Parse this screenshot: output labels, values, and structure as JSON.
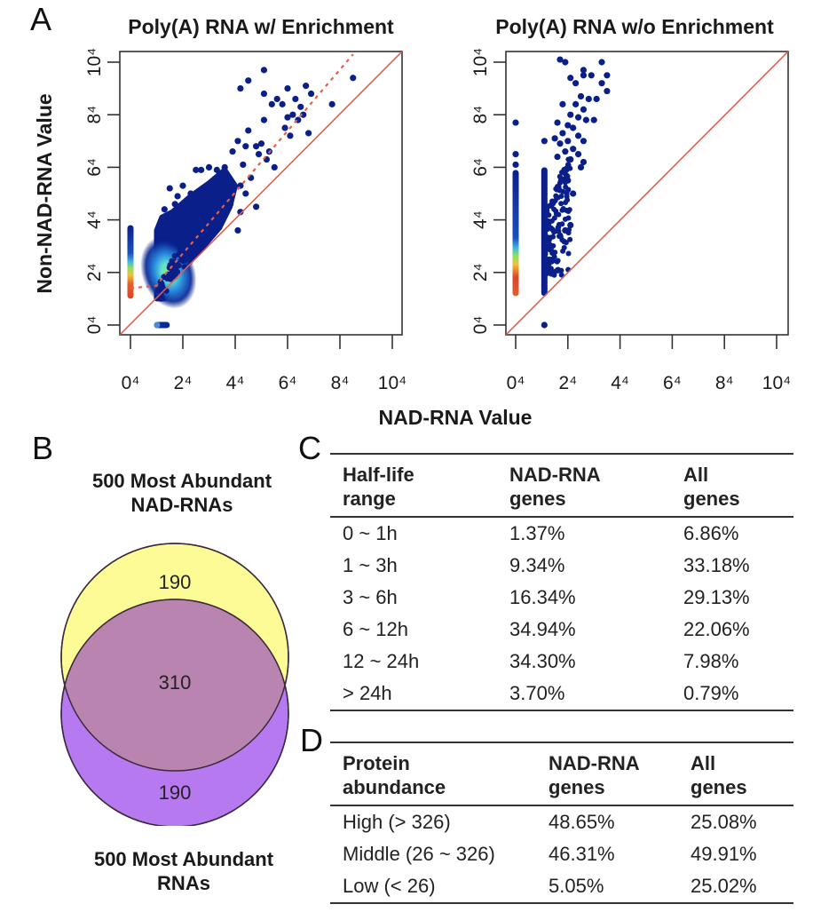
{
  "panels": {
    "A": "A",
    "B": "B",
    "C": "C",
    "D": "D"
  },
  "chart_data": [
    {
      "type": "scatter",
      "title": "Poly(A) RNA w/ Enrichment",
      "xlabel": "NAD-RNA Value",
      "ylabel": "Non-NAD-RNA Value",
      "xlim": [
        0,
        10
      ],
      "ylim": [
        0,
        10
      ],
      "x_tick_labels": [
        "0⁴",
        "2⁴",
        "4⁴",
        "6⁴",
        "8⁴",
        "10⁴"
      ],
      "y_tick_labels": [
        "0⁴",
        "2⁴",
        "4⁴",
        "6⁴",
        "8⁴",
        "10⁴"
      ],
      "ticks": [
        0,
        2,
        4,
        6,
        8,
        10
      ],
      "color_scale": "density (blue → cyan → green → yellow → red)",
      "reference_line": {
        "type": "identity",
        "color": "#e0604e"
      },
      "trend_line": {
        "type": "dashed",
        "color": "#e0604e",
        "points": [
          [
            0,
            1.4
          ],
          [
            1,
            1.5
          ],
          [
            1.3,
            1.9
          ],
          [
            8.5,
            10.3
          ]
        ]
      },
      "clusters": [
        {
          "name": "zero-x column",
          "x": 0,
          "y_range": [
            1.0,
            3.8
          ],
          "dense_range": [
            1.0,
            2.2
          ]
        },
        {
          "name": "main cloud",
          "x_range": [
            1.0,
            4.0
          ],
          "y_range": [
            1.0,
            5.3
          ],
          "dense_center": [
            1.3,
            1.8
          ]
        },
        {
          "name": "zero-y row",
          "x_range": [
            1.0,
            1.4
          ],
          "y": 0
        }
      ],
      "points": [
        [
          5.1,
          9.7
        ],
        [
          4.5,
          9.3
        ],
        [
          4.2,
          9.0
        ],
        [
          8.5,
          9.4
        ],
        [
          6.7,
          9.1
        ],
        [
          6.0,
          9.0
        ],
        [
          5.1,
          8.8
        ],
        [
          6.9,
          8.8
        ],
        [
          7.7,
          8.4
        ],
        [
          5.6,
          8.6
        ],
        [
          5.8,
          8.4
        ],
        [
          6.3,
          8.6
        ],
        [
          5.4,
          8.4
        ],
        [
          6.5,
          8.3
        ],
        [
          6.2,
          8.0
        ],
        [
          6.6,
          8.0
        ],
        [
          6.0,
          7.9
        ],
        [
          5.1,
          7.8
        ],
        [
          6.4,
          7.8
        ],
        [
          5.9,
          7.5
        ],
        [
          6.1,
          7.2
        ],
        [
          6.8,
          7.3
        ],
        [
          4.5,
          7.4
        ],
        [
          4.1,
          7.0
        ],
        [
          5.0,
          6.9
        ],
        [
          4.4,
          6.8
        ],
        [
          4.9,
          6.5
        ],
        [
          5.3,
          6.6
        ],
        [
          5.2,
          6.3
        ],
        [
          4.8,
          6.8
        ],
        [
          3.9,
          6.6
        ],
        [
          5.5,
          6.0
        ],
        [
          4.3,
          6.1
        ],
        [
          4.6,
          5.6
        ],
        [
          4.2,
          5.3
        ],
        [
          4.4,
          5.0
        ],
        [
          4.8,
          4.5
        ],
        [
          4.2,
          4.3
        ],
        [
          4.1,
          3.6
        ],
        [
          3.6,
          6.0
        ],
        [
          3.3,
          5.9
        ],
        [
          2.7,
          5.9
        ],
        [
          2.5,
          5.9
        ],
        [
          3.0,
          6.0
        ],
        [
          1.5,
          5.2
        ],
        [
          2.0,
          5.3
        ],
        [
          1.8,
          4.9
        ],
        [
          1.3,
          4.4
        ],
        [
          1.7,
          4.6
        ],
        [
          2.3,
          5.0
        ]
      ]
    },
    {
      "type": "scatter",
      "title": "Poly(A) RNA w/o Enrichment",
      "xlabel": "NAD-RNA Value",
      "ylabel": "",
      "xlim": [
        0,
        10
      ],
      "ylim": [
        0,
        10
      ],
      "x_tick_labels": [
        "0⁴",
        "2⁴",
        "4⁴",
        "6⁴",
        "8⁴",
        "10⁴"
      ],
      "y_tick_labels": [
        "0⁴",
        "2⁴",
        "4⁴",
        "6⁴",
        "8⁴",
        "10⁴"
      ],
      "ticks": [
        0,
        2,
        4,
        6,
        8,
        10
      ],
      "color_scale": "density (blue → cyan → green → yellow → red)",
      "reference_line": {
        "type": "identity",
        "color": "#e0604e"
      },
      "clusters": [
        {
          "name": "zero-x column",
          "x": 0,
          "y_range": [
            1.1,
            5.9
          ],
          "dense_range": [
            1.1,
            2.8
          ]
        },
        {
          "name": "x=1 column",
          "x": 1.1,
          "y_range": [
            1.1,
            6.0
          ]
        },
        {
          "name": "spread",
          "x_range": [
            1.1,
            2.1
          ],
          "y_range": [
            1.9,
            6.5
          ]
        }
      ],
      "points": [
        [
          0,
          7.7
        ],
        [
          0,
          6.5
        ],
        [
          0,
          6.1
        ],
        [
          1.7,
          10.1
        ],
        [
          1.9,
          10.0
        ],
        [
          3.3,
          10.0
        ],
        [
          2.6,
          9.7
        ],
        [
          2.6,
          9.5
        ],
        [
          2.9,
          9.5
        ],
        [
          2.1,
          9.4
        ],
        [
          3.5,
          9.5
        ],
        [
          2.3,
          9.2
        ],
        [
          3.3,
          9.2
        ],
        [
          3.5,
          8.9
        ],
        [
          2.5,
          8.7
        ],
        [
          2.8,
          8.6
        ],
        [
          3.1,
          8.6
        ],
        [
          1.8,
          8.4
        ],
        [
          2.3,
          8.4
        ],
        [
          2.6,
          8.2
        ],
        [
          2.1,
          8.0
        ],
        [
          2.4,
          7.9
        ],
        [
          2.7,
          7.8
        ],
        [
          3.0,
          7.8
        ],
        [
          1.6,
          7.7
        ],
        [
          2.0,
          7.6
        ],
        [
          2.2,
          7.5
        ],
        [
          1.8,
          7.3
        ],
        [
          2.4,
          7.2
        ],
        [
          1.5,
          7.1
        ],
        [
          2.0,
          7.0
        ],
        [
          2.6,
          7.0
        ],
        [
          1.1,
          7.0
        ],
        [
          1.7,
          6.9
        ],
        [
          2.2,
          6.7
        ],
        [
          1.9,
          6.6
        ],
        [
          2.4,
          6.5
        ],
        [
          2.6,
          6.2
        ],
        [
          2.1,
          6.3
        ],
        [
          1.6,
          6.4
        ],
        [
          2.5,
          6.0
        ],
        [
          2.0,
          5.5
        ],
        [
          2.2,
          5.0
        ],
        [
          2.1,
          3.8
        ],
        [
          1.9,
          3.6
        ],
        [
          1.1,
          0
        ]
      ]
    }
  ],
  "venn": {
    "top_label_line1": "500 Most Abundant",
    "top_label_line2": "NAD-RNAs",
    "bottom_label_line1": "500 Most Abundant",
    "bottom_label_line2": "RNAs",
    "top_only": "190",
    "overlap": "310",
    "bottom_only": "190",
    "colors": {
      "top": "#fdfb96",
      "bottom": "#b679f0",
      "overlap": "#b985b0"
    }
  },
  "table_c": {
    "headers": [
      [
        "Half-life",
        "range"
      ],
      [
        "NAD-RNA",
        "genes"
      ],
      [
        "All",
        "genes"
      ]
    ],
    "rows": [
      [
        "0 ~ 1h",
        "1.37%",
        "6.86%"
      ],
      [
        "1 ~ 3h",
        "9.34%",
        "33.18%"
      ],
      [
        "3 ~ 6h",
        "16.34%",
        "29.13%"
      ],
      [
        "6 ~ 12h",
        "34.94%",
        "22.06%"
      ],
      [
        "12 ~ 24h",
        "34.30%",
        "7.98%"
      ],
      [
        "> 24h",
        "3.70%",
        "0.79%"
      ]
    ]
  },
  "table_d": {
    "headers": [
      [
        "Protein",
        "abundance"
      ],
      [
        "NAD-RNA",
        "genes"
      ],
      [
        "All",
        "genes"
      ]
    ],
    "rows": [
      [
        "High (> 326)",
        "48.65%",
        "25.08%"
      ],
      [
        "Middle (26 ~ 326)",
        "46.31%",
        "49.91%"
      ],
      [
        "Low (< 26)",
        "5.05%",
        "25.02%"
      ]
    ]
  }
}
